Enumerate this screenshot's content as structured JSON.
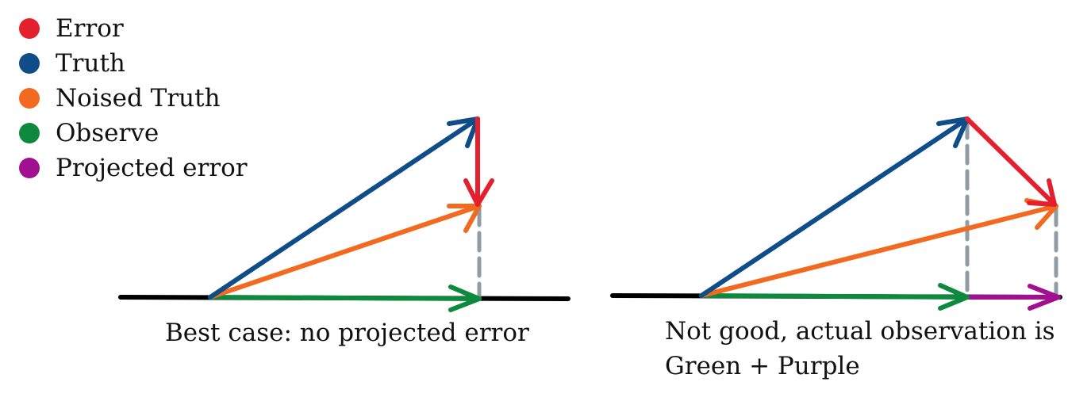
{
  "colors": {
    "error": "#e4202f",
    "truth": "#0e4d88",
    "noised_truth": "#f26a1f",
    "observe": "#0d8a3e",
    "projected_error": "#a0108f",
    "baseline": "#000000",
    "projection_line": "#8f9ca3"
  },
  "legend": [
    {
      "label": "Error",
      "color": "#e4202f"
    },
    {
      "label": "Truth",
      "color": "#0e4d88"
    },
    {
      "label": "Noised Truth",
      "color": "#f26a1f"
    },
    {
      "label": "Observe",
      "color": "#0d8a3e"
    },
    {
      "label": "Projected error",
      "color": "#a0108f"
    }
  ],
  "panels": {
    "left": {
      "caption": "Best case: no projected error"
    },
    "right": {
      "caption_line1": "Not good, actual observation is",
      "caption_line2": "Green + Purple"
    }
  }
}
